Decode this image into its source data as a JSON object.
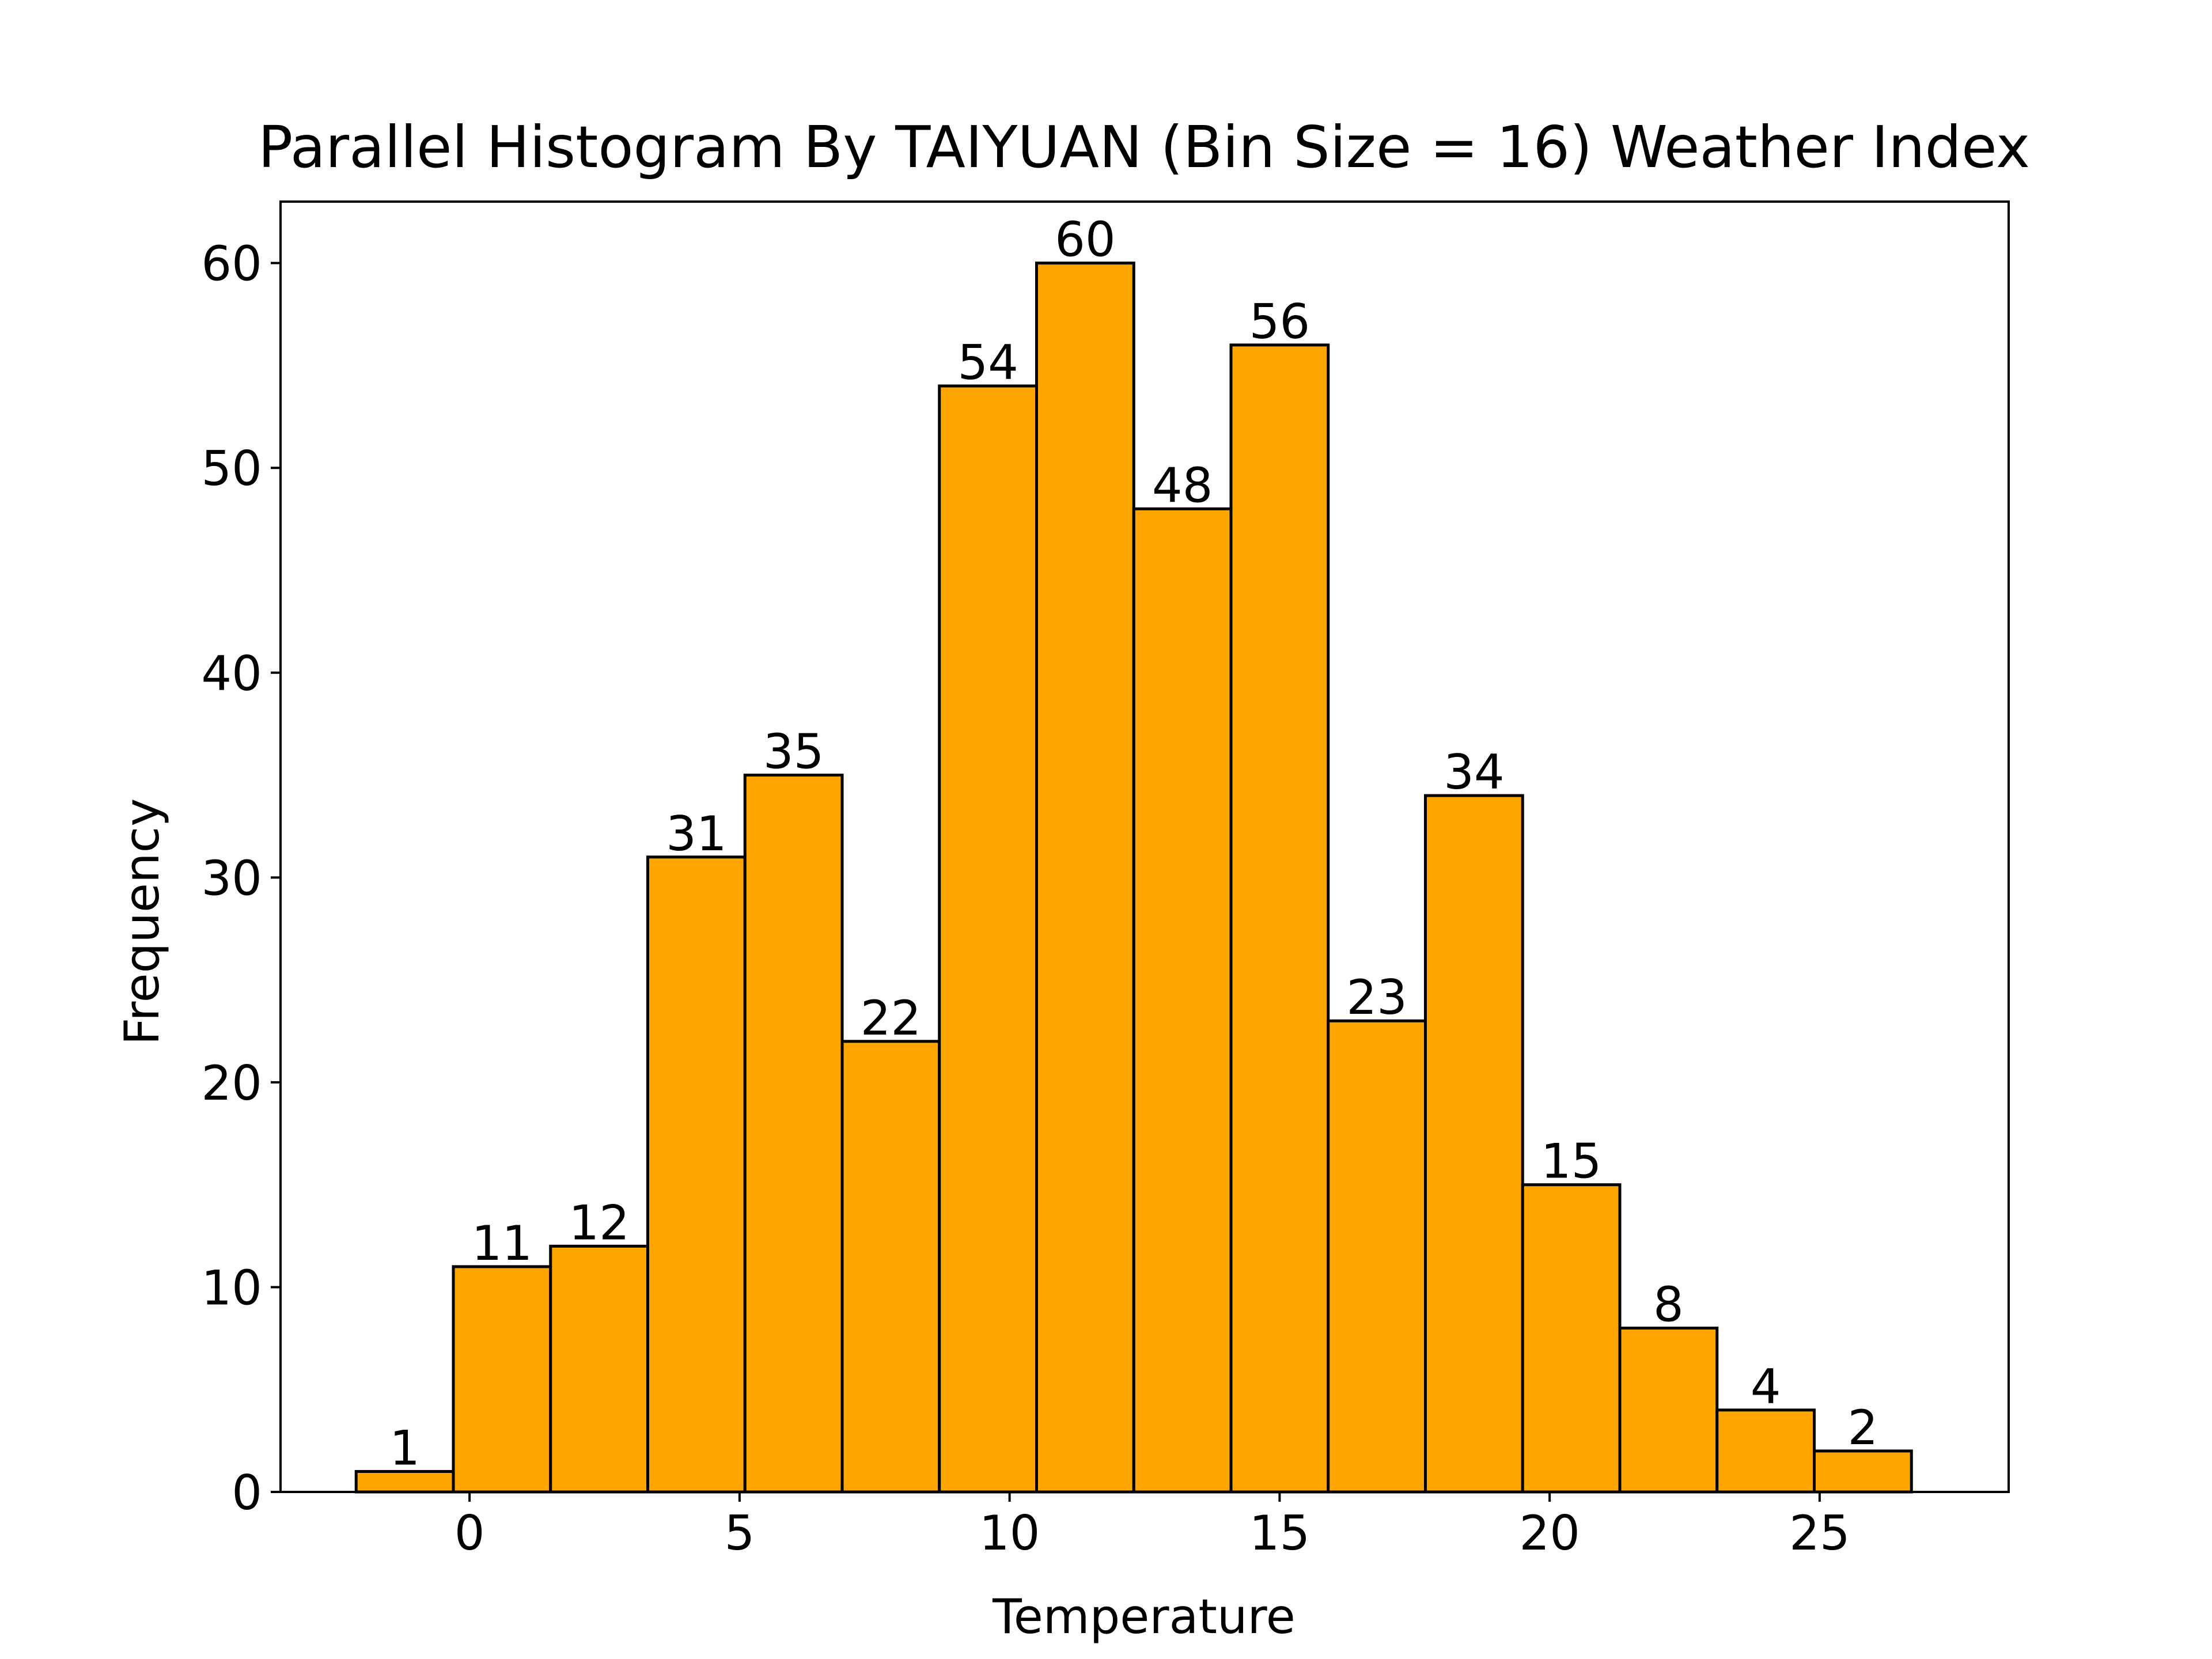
{
  "chart_data": {
    "type": "bar",
    "title": "Parallel Histogram By TAIYUAN (Bin Size = 16) Weather Index",
    "xlabel": "Temperature",
    "ylabel": "Frequency",
    "xlim": [
      -3.5,
      28.5
    ],
    "ylim": [
      0,
      63
    ],
    "x_ticks": [
      0,
      5,
      10,
      15,
      20,
      25
    ],
    "y_ticks": [
      0,
      10,
      20,
      30,
      40,
      50,
      60
    ],
    "bin_edges": [
      -2.1,
      -0.3,
      1.5,
      3.3,
      5.1,
      6.9,
      8.7,
      10.5,
      12.3,
      14.1,
      15.9,
      17.7,
      19.5,
      21.3,
      23.1,
      24.9,
      26.7
    ],
    "values": [
      1,
      11,
      12,
      31,
      35,
      22,
      54,
      60,
      48,
      56,
      23,
      34,
      15,
      8,
      4,
      2
    ],
    "bar_color": "#ffa500",
    "edge_color": "#000000",
    "grid": false,
    "legend": "none"
  }
}
